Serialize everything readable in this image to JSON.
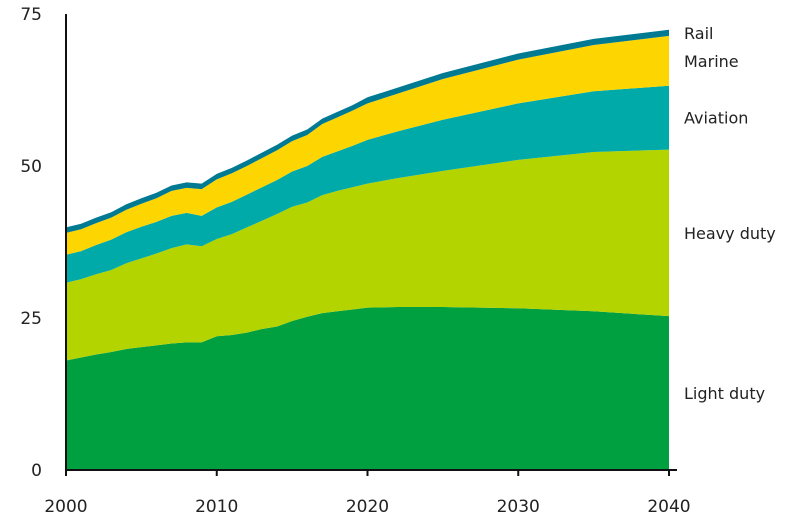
{
  "chart_data": {
    "type": "area",
    "stacked": true,
    "title": "",
    "xlabel": "",
    "ylabel": "",
    "xlim": [
      2000,
      2040
    ],
    "ylim": [
      0,
      75
    ],
    "x_ticks": [
      2000,
      2010,
      2020,
      2030,
      2040
    ],
    "y_ticks": [
      0,
      25,
      50,
      75
    ],
    "grid": false,
    "legend": "labels at right end of areas",
    "x": [
      2000,
      2001,
      2002,
      2003,
      2004,
      2005,
      2006,
      2007,
      2008,
      2009,
      2010,
      2011,
      2012,
      2013,
      2014,
      2015,
      2016,
      2017,
      2018,
      2019,
      2020,
      2022,
      2025,
      2030,
      2035,
      2040
    ],
    "series": [
      {
        "name": "Light duty",
        "color": "#00a040",
        "values": [
          18.0,
          18.5,
          19.0,
          19.4,
          19.9,
          20.2,
          20.5,
          20.8,
          21.0,
          21.0,
          22.0,
          22.2,
          22.6,
          23.2,
          23.6,
          24.5,
          25.2,
          25.8,
          26.1,
          26.4,
          26.7,
          26.8,
          26.8,
          26.6,
          26.1,
          25.3
        ]
      },
      {
        "name": "Heavy duty",
        "color": "#b4d400",
        "values": [
          12.8,
          12.9,
          13.2,
          13.5,
          14.1,
          14.6,
          15.1,
          15.7,
          16.1,
          15.8,
          16.0,
          16.6,
          17.3,
          17.8,
          18.5,
          18.8,
          18.8,
          19.4,
          19.8,
          20.1,
          20.4,
          21.2,
          22.4,
          24.4,
          26.2,
          27.4
        ]
      },
      {
        "name": "Aviation",
        "color": "#00aaa8",
        "values": [
          4.6,
          4.6,
          4.8,
          5.0,
          5.1,
          5.2,
          5.2,
          5.3,
          5.2,
          5.0,
          5.2,
          5.3,
          5.4,
          5.5,
          5.6,
          5.8,
          6.0,
          6.3,
          6.5,
          6.8,
          7.2,
          7.7,
          8.4,
          9.3,
          10.0,
          10.5
        ]
      },
      {
        "name": "Marine",
        "color": "#fdd500",
        "values": [
          3.6,
          3.6,
          3.6,
          3.6,
          3.7,
          3.8,
          3.9,
          4.1,
          4.1,
          4.4,
          4.6,
          4.7,
          4.7,
          4.8,
          4.9,
          5.0,
          5.1,
          5.4,
          5.6,
          5.8,
          6.0,
          6.2,
          6.7,
          7.2,
          7.6,
          8.2
        ]
      },
      {
        "name": "Rail",
        "color": "#007a93",
        "values": [
          0.9,
          0.9,
          0.9,
          0.9,
          0.9,
          0.9,
          0.9,
          0.9,
          0.9,
          0.9,
          0.9,
          0.9,
          0.9,
          0.9,
          0.9,
          0.9,
          0.9,
          0.9,
          0.9,
          0.9,
          1.0,
          1.0,
          1.0,
          1.0,
          1.0,
          1.0
        ]
      }
    ]
  }
}
